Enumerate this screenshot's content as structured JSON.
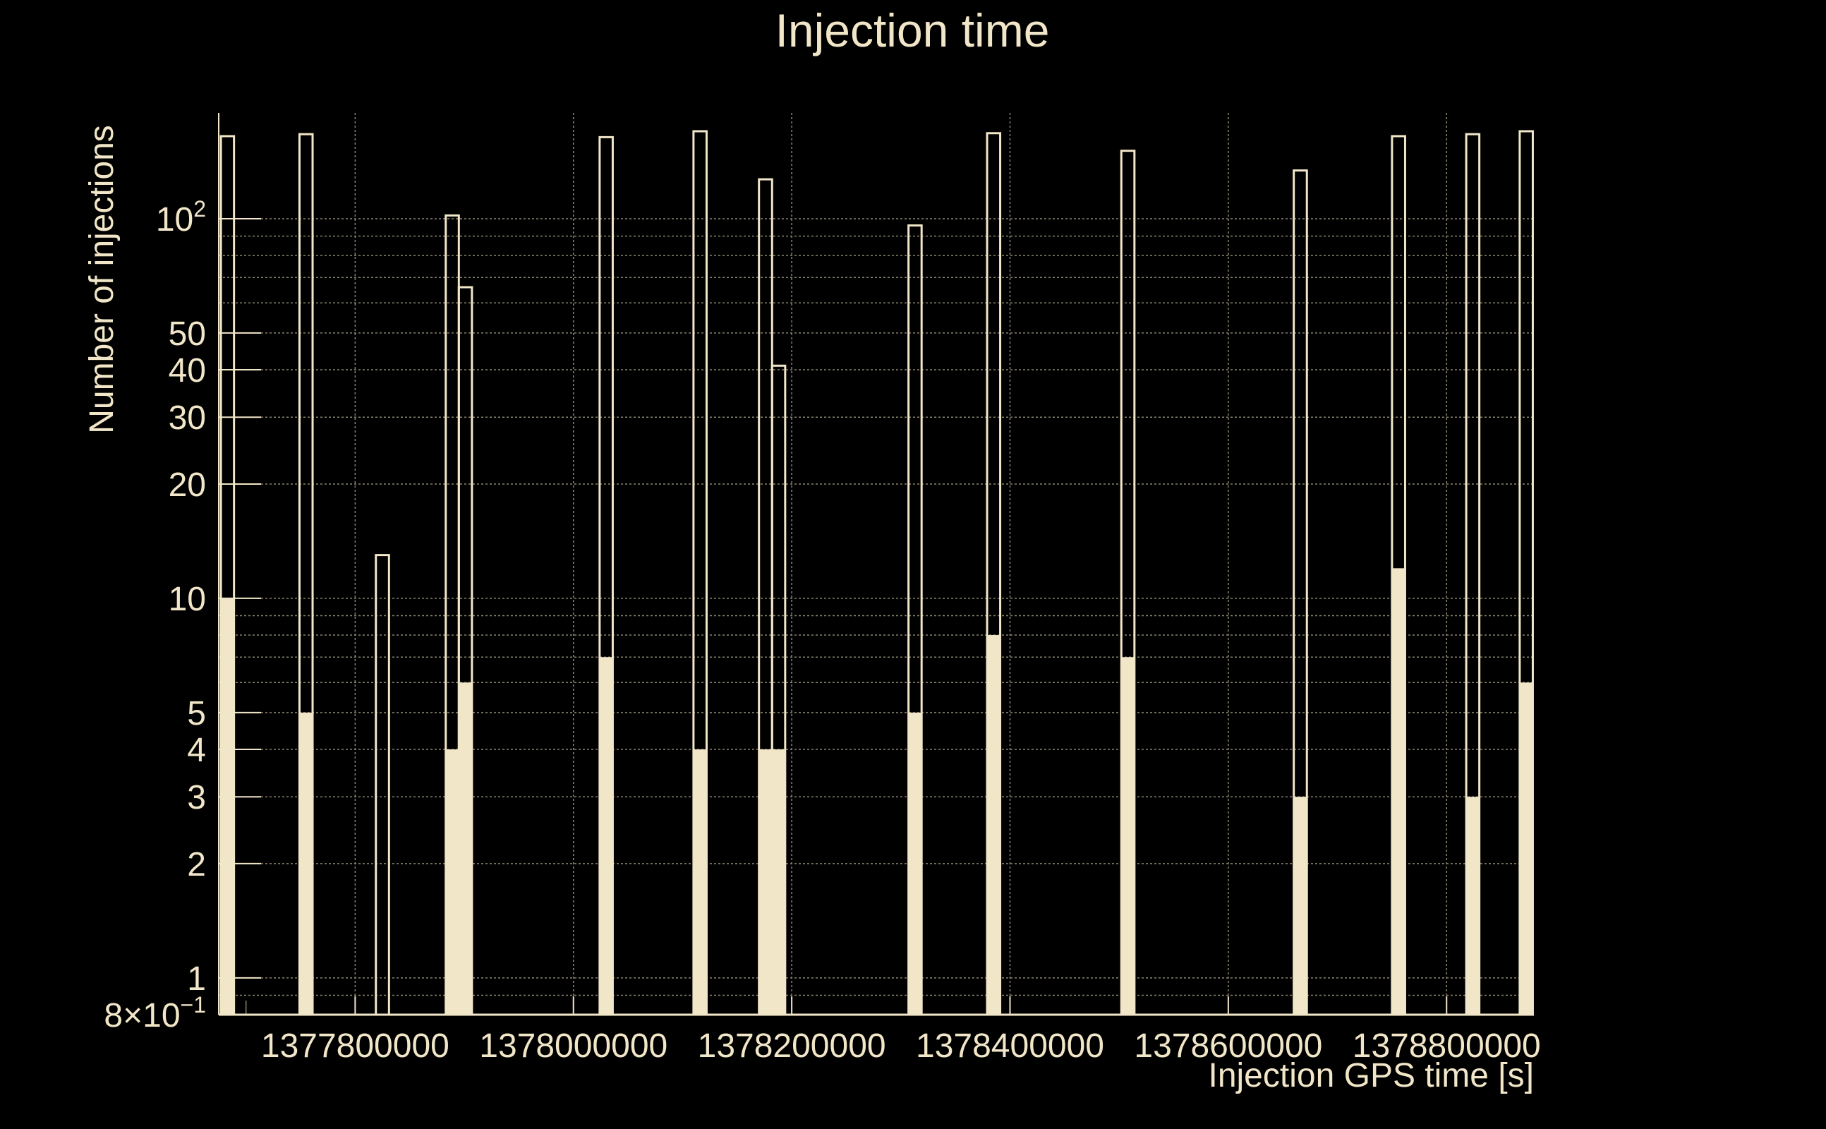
{
  "colors": {
    "background": "#000000",
    "foreground": "#f1e6c8",
    "fill": "#f1e6c8",
    "grid": "#8a8470"
  },
  "chart_data": {
    "type": "bar",
    "title": "Injection time",
    "xlabel": "Injection GPS time [s]",
    "ylabel": "Number of injections",
    "yscale": "log",
    "ylim": [
      0.8,
      190
    ],
    "xlim": [
      1377675000,
      1378880000
    ],
    "grid": true,
    "xticks": [
      1377800000,
      1378000000,
      1378200000,
      1378400000,
      1378600000,
      1378800000
    ],
    "xtick_labels": [
      "1377800000",
      "1378000000",
      "1378200000",
      "1378400000",
      "1378600000",
      "1378800000"
    ],
    "yticks": [
      {
        "value": 0.8,
        "mantissa": "8",
        "exponent": "−1"
      },
      {
        "value": 1,
        "label": "1"
      },
      {
        "value": 2,
        "label": "2"
      },
      {
        "value": 3,
        "label": "3"
      },
      {
        "value": 4,
        "label": "4"
      },
      {
        "value": 5,
        "label": "5"
      },
      {
        "value": 10,
        "label": "10"
      },
      {
        "value": 20,
        "label": "20"
      },
      {
        "value": 30,
        "label": "30"
      },
      {
        "value": 40,
        "label": "40"
      },
      {
        "value": 50,
        "label": "50"
      },
      {
        "value": 100,
        "mantissa": "10",
        "exponent": "2"
      }
    ],
    "series": [
      {
        "style": "outline",
        "bins": [
          {
            "x0": 1377677000,
            "x1": 1377689000,
            "value": 165
          },
          {
            "x0": 1377749000,
            "x1": 1377761000,
            "value": 167
          },
          {
            "x0": 1377819000,
            "x1": 1377831000,
            "value": 13
          },
          {
            "x0": 1377883000,
            "x1": 1377895000,
            "value": 102
          },
          {
            "x0": 1377895000,
            "x1": 1377907000,
            "value": 66
          },
          {
            "x0": 1378024000,
            "x1": 1378036000,
            "value": 164
          },
          {
            "x0": 1378110000,
            "x1": 1378122000,
            "value": 170
          },
          {
            "x0": 1378170000,
            "x1": 1378182000,
            "value": 127
          },
          {
            "x0": 1378182000,
            "x1": 1378194000,
            "value": 41
          },
          {
            "x0": 1378307000,
            "x1": 1378319000,
            "value": 96
          },
          {
            "x0": 1378379000,
            "x1": 1378391000,
            "value": 168
          },
          {
            "x0": 1378502000,
            "x1": 1378514000,
            "value": 151
          },
          {
            "x0": 1378660000,
            "x1": 1378672000,
            "value": 134
          },
          {
            "x0": 1378750000,
            "x1": 1378762000,
            "value": 165
          },
          {
            "x0": 1378818000,
            "x1": 1378830000,
            "value": 167
          },
          {
            "x0": 1378867000,
            "x1": 1378879000,
            "value": 170
          }
        ]
      },
      {
        "style": "filled",
        "bins": [
          {
            "x0": 1377677000,
            "x1": 1377689000,
            "value": 10
          },
          {
            "x0": 1377749000,
            "x1": 1377761000,
            "value": 5
          },
          {
            "x0": 1377883000,
            "x1": 1377895000,
            "value": 4
          },
          {
            "x0": 1377895000,
            "x1": 1377907000,
            "value": 6
          },
          {
            "x0": 1378024000,
            "x1": 1378036000,
            "value": 7
          },
          {
            "x0": 1378110000,
            "x1": 1378122000,
            "value": 4
          },
          {
            "x0": 1378170000,
            "x1": 1378182000,
            "value": 4
          },
          {
            "x0": 1378182000,
            "x1": 1378194000,
            "value": 4
          },
          {
            "x0": 1378307000,
            "x1": 1378319000,
            "value": 5
          },
          {
            "x0": 1378379000,
            "x1": 1378391000,
            "value": 8
          },
          {
            "x0": 1378502000,
            "x1": 1378514000,
            "value": 7
          },
          {
            "x0": 1378660000,
            "x1": 1378672000,
            "value": 3
          },
          {
            "x0": 1378750000,
            "x1": 1378762000,
            "value": 12
          },
          {
            "x0": 1378818000,
            "x1": 1378830000,
            "value": 3
          },
          {
            "x0": 1378867000,
            "x1": 1378879000,
            "value": 6
          }
        ]
      }
    ]
  }
}
